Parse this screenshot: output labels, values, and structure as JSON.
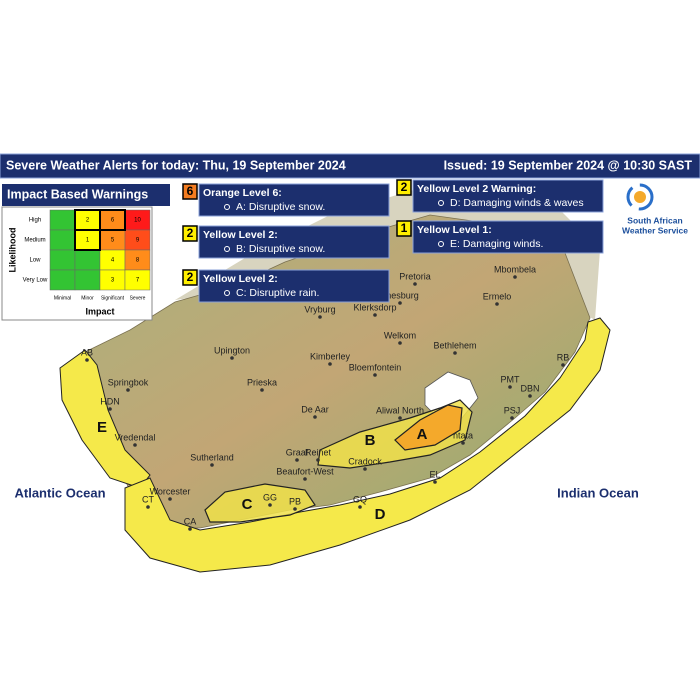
{
  "header": {
    "title": "Severe Weather Alerts for today: Thu, 19 September 2024",
    "issued": "Issued: 19 September 2024 @ 10:30 SAST"
  },
  "impact_matrix": {
    "title": "Impact Based Warnings",
    "y_label": "Likelihood",
    "x_label": "Impact",
    "rows": [
      "High",
      "Medium",
      "Low",
      "Very Low"
    ],
    "columns": [
      "Minimal",
      "Minor",
      "Significant",
      "Severe"
    ],
    "cells": [
      [
        null,
        "2",
        "6",
        "10"
      ],
      [
        null,
        "1",
        "5",
        "9"
      ],
      [
        null,
        null,
        "4",
        "8"
      ],
      [
        null,
        null,
        "3",
        "7"
      ]
    ],
    "colors": [
      [
        "#33c433",
        "#ffff00",
        "#ff8c1a",
        "#ff1a1a"
      ],
      [
        "#33c433",
        "#ffff00",
        "#ff8c1a",
        "#ff4d1a"
      ],
      [
        "#33c433",
        "#33c433",
        "#ffff00",
        "#ff8c1a"
      ],
      [
        "#33c433",
        "#33c433",
        "#ffff00",
        "#ffff00"
      ]
    ],
    "highlighted": [
      [
        0,
        1
      ],
      [
        0,
        2
      ],
      [
        1,
        1
      ]
    ]
  },
  "warnings": [
    {
      "level": "6",
      "color": "#f47c20",
      "title": "Orange Level 6:",
      "item": "A: Disruptive snow."
    },
    {
      "level": "2",
      "color": "#ffef00",
      "title": "Yellow Level 2:",
      "item": "B: Disruptive snow."
    },
    {
      "level": "2",
      "color": "#ffef00",
      "title": "Yellow Level 2:",
      "item": "C: Disruptive rain."
    },
    {
      "level": "2",
      "color": "#ffef00",
      "title": "Yellow Level 2 Warning:",
      "item": "D: Damaging winds & waves"
    },
    {
      "level": "1",
      "color": "#ffef00",
      "title": "Yellow Level 1:",
      "item": "E: Damaging winds."
    }
  ],
  "logo": {
    "line1": "South African",
    "line2": "Weather Service"
  },
  "map": {
    "oceans": [
      "Atlantic Ocean",
      "Indian Ocean"
    ],
    "regions": [
      "A",
      "B",
      "C",
      "D",
      "E"
    ],
    "places": [
      "Pretoria",
      "Mbombela",
      "nnesburg",
      "Klerksdorp",
      "Ermelo",
      "Vryburg",
      "Welkom",
      "Bethlehem",
      "Upington",
      "Kimberley",
      "Bloemfontein",
      "Springbok",
      "Prieska",
      "De Aar",
      "Aliwal North",
      "Sutherland",
      "Graaf",
      "Reinet",
      "Cradock",
      "Beaufort-West",
      "Worcester",
      "Vredendal",
      "PMT",
      "DBN",
      "RB",
      "PSJ",
      "EL",
      "GQ",
      "CT",
      "CA",
      "AB",
      "HDN",
      "GG",
      "PB",
      "ntata"
    ]
  }
}
